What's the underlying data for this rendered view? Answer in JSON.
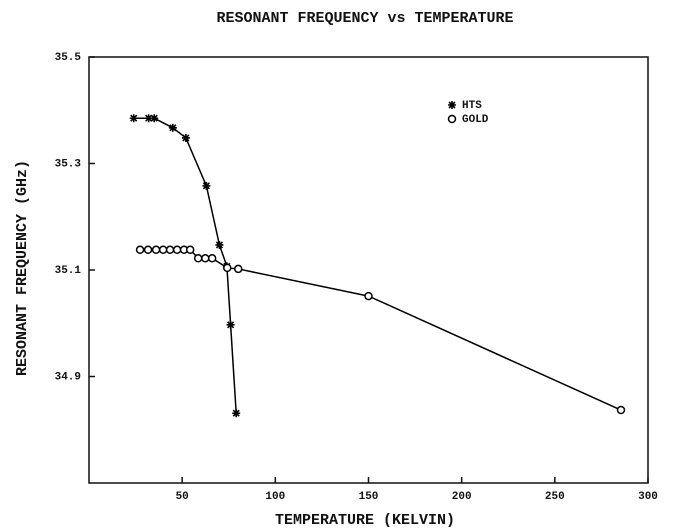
{
  "chart_data": {
    "type": "line",
    "title": "RESONANT FREQUENCY vs TEMPERATURE",
    "x_label": "TEMPERATURE (KELVIN)",
    "y_label": "RESONANT FREQUENCY (GHz)",
    "xlim": [
      0,
      300
    ],
    "xticks": [
      50,
      100,
      150,
      200,
      250,
      300
    ],
    "ylim": [
      34.7,
      35.5
    ],
    "yticks": [
      34.9,
      35.1,
      35.3,
      35.5
    ],
    "legend": "upper right",
    "series": [
      {
        "name": "HTS",
        "color": "#000000",
        "marker": "asterisk",
        "x": [
          24,
          32,
          35,
          45,
          52,
          63,
          70,
          74,
          76,
          79
        ],
        "values": [
          35.385,
          35.385,
          35.385,
          35.367,
          35.348,
          35.258,
          35.147,
          35.107,
          34.997,
          34.831
        ]
      },
      {
        "name": "GOLD",
        "color": "#000000",
        "marker": "circle",
        "x": [
          27.4,
          31.7,
          36,
          39.8,
          43.5,
          47.3,
          51,
          54.3,
          58.6,
          62.4,
          66.1,
          74.2,
          80.1,
          150,
          285.5
        ],
        "values": [
          35.138,
          35.138,
          35.138,
          35.138,
          35.138,
          35.138,
          35.138,
          35.138,
          35.122,
          35.122,
          35.122,
          35.104,
          35.102,
          35.051,
          34.837
        ]
      }
    ]
  }
}
